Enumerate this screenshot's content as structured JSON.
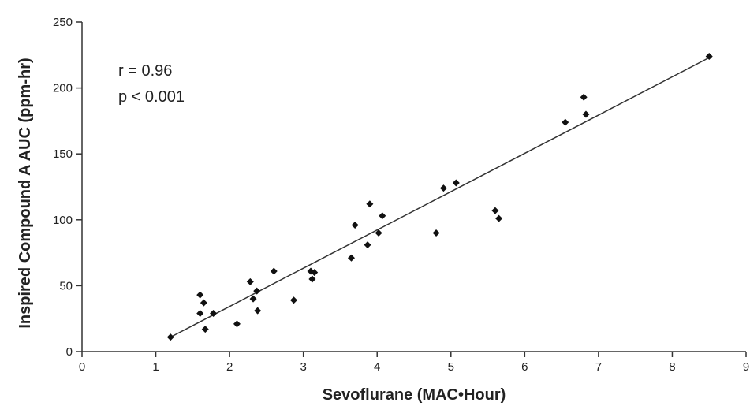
{
  "chart_data": {
    "type": "scatter",
    "title": "",
    "xlabel": "Sevoflurane (MAC•Hour)",
    "ylabel": "Inspired Compound A AUC (ppm-hr)",
    "xlim": [
      0,
      9
    ],
    "ylim": [
      0,
      250
    ],
    "xticks": [
      "0",
      "1",
      "2",
      "3",
      "4",
      "5",
      "6",
      "7",
      "8",
      "9"
    ],
    "yticks": [
      "0",
      "50",
      "100",
      "150",
      "200",
      "250"
    ],
    "annotations": [
      "r = 0.96",
      "p < 0.001"
    ],
    "grid": false,
    "fit_line": {
      "x": [
        1.2,
        8.5
      ],
      "y": [
        11,
        223
      ]
    },
    "points": [
      {
        "x": 1.2,
        "y": 11
      },
      {
        "x": 1.6,
        "y": 43
      },
      {
        "x": 1.6,
        "y": 29
      },
      {
        "x": 1.65,
        "y": 37
      },
      {
        "x": 1.67,
        "y": 17
      },
      {
        "x": 1.78,
        "y": 29
      },
      {
        "x": 2.1,
        "y": 21
      },
      {
        "x": 2.28,
        "y": 53
      },
      {
        "x": 2.32,
        "y": 40
      },
      {
        "x": 2.37,
        "y": 46
      },
      {
        "x": 2.38,
        "y": 31
      },
      {
        "x": 2.6,
        "y": 61
      },
      {
        "x": 2.87,
        "y": 39
      },
      {
        "x": 3.1,
        "y": 61
      },
      {
        "x": 3.15,
        "y": 60
      },
      {
        "x": 3.12,
        "y": 55
      },
      {
        "x": 3.65,
        "y": 71
      },
      {
        "x": 3.7,
        "y": 96
      },
      {
        "x": 3.87,
        "y": 81
      },
      {
        "x": 3.9,
        "y": 112
      },
      {
        "x": 4.02,
        "y": 90
      },
      {
        "x": 4.07,
        "y": 103
      },
      {
        "x": 4.8,
        "y": 90
      },
      {
        "x": 4.9,
        "y": 124
      },
      {
        "x": 5.07,
        "y": 128
      },
      {
        "x": 5.6,
        "y": 107
      },
      {
        "x": 5.65,
        "y": 101
      },
      {
        "x": 6.55,
        "y": 174
      },
      {
        "x": 6.8,
        "y": 193
      },
      {
        "x": 6.83,
        "y": 180
      },
      {
        "x": 8.5,
        "y": 224
      }
    ]
  }
}
